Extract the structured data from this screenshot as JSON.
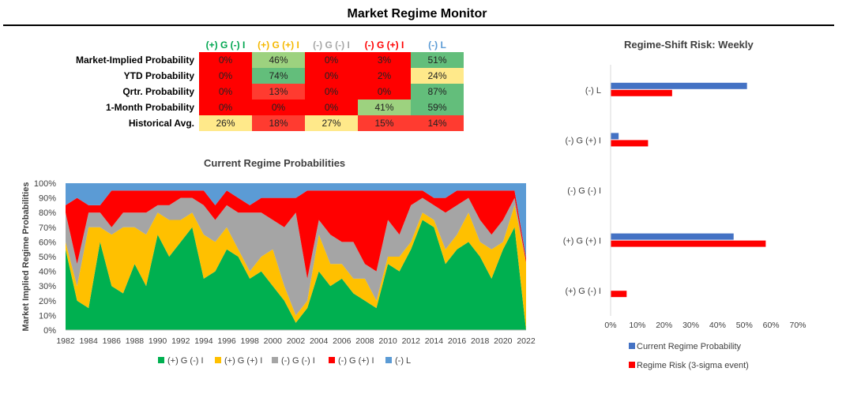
{
  "page_title": "Market Regime Monitor",
  "table": {
    "columns": [
      {
        "label": "(+) G (-) I",
        "color": "#00a650"
      },
      {
        "label": "(+) G (+) I",
        "color": "#f5b800"
      },
      {
        "label": "(-) G (-) I",
        "color": "#a6a6a6"
      },
      {
        "label": "(-) G (+) I",
        "color": "#ff0000"
      },
      {
        "label": "(-) L",
        "color": "#5b9bd5"
      }
    ],
    "rows": [
      {
        "label": "Market-Implied Probability",
        "values": [
          "0%",
          "46%",
          "0%",
          "3%",
          "51%"
        ]
      },
      {
        "label": "YTD Probability",
        "values": [
          "0%",
          "74%",
          "0%",
          "2%",
          "24%"
        ]
      },
      {
        "label": "Qrtr. Probability",
        "values": [
          "0%",
          "13%",
          "0%",
          "0%",
          "87%"
        ]
      },
      {
        "label": "1-Month Probability",
        "values": [
          "0%",
          "0%",
          "0%",
          "41%",
          "59%"
        ]
      },
      {
        "label": "Historical Avg.",
        "values": [
          "26%",
          "18%",
          "27%",
          "15%",
          "14%"
        ]
      }
    ]
  },
  "colors": {
    "g_neg_i": "#00b050",
    "g_pos_i": "#ffc000",
    "neg_g_neg_i": "#a5a5a5",
    "neg_g_pos_i": "#ff0000",
    "neg_l": "#5b9bd5",
    "current_bar": "#4472c4",
    "risk_bar": "#ff0000"
  },
  "chart_data": [
    {
      "type": "area",
      "stacked": "percent",
      "title": "Current Regime Probabilities",
      "ylabel": "Market Implied Regime Probabilities",
      "ylim": [
        0,
        100
      ],
      "y_ticks": [
        "0%",
        "10%",
        "20%",
        "30%",
        "40%",
        "50%",
        "60%",
        "70%",
        "80%",
        "90%",
        "100%"
      ],
      "x_ticks": [
        "1982",
        "1984",
        "1986",
        "1988",
        "1990",
        "1992",
        "1994",
        "1996",
        "1998",
        "2000",
        "2002",
        "2004",
        "2006",
        "2008",
        "2010",
        "2012",
        "2014",
        "2016",
        "2018",
        "2020",
        "2022"
      ],
      "x": [
        1982,
        1983,
        1984,
        1985,
        1986,
        1987,
        1988,
        1989,
        1990,
        1991,
        1992,
        1993,
        1994,
        1995,
        1996,
        1997,
        1998,
        1999,
        2000,
        2001,
        2002,
        2003,
        2004,
        2005,
        2006,
        2007,
        2008,
        2009,
        2010,
        2011,
        2012,
        2013,
        2014,
        2015,
        2016,
        2017,
        2018,
        2019,
        2020,
        2021,
        2022
      ],
      "series": [
        {
          "name": "(+) G (-) I",
          "values": [
            55,
            20,
            15,
            60,
            30,
            25,
            45,
            30,
            65,
            50,
            60,
            70,
            35,
            40,
            55,
            50,
            35,
            40,
            30,
            20,
            5,
            15,
            40,
            30,
            35,
            25,
            20,
            15,
            45,
            40,
            55,
            75,
            70,
            45,
            55,
            60,
            50,
            35,
            55,
            70,
            0
          ]
        },
        {
          "name": "(+) G (+) I",
          "values": [
            5,
            10,
            55,
            10,
            35,
            45,
            25,
            35,
            15,
            25,
            15,
            10,
            30,
            20,
            15,
            5,
            5,
            10,
            25,
            10,
            5,
            5,
            25,
            15,
            10,
            10,
            15,
            5,
            5,
            10,
            5,
            5,
            5,
            10,
            10,
            20,
            10,
            20,
            5,
            15,
            46
          ]
        },
        {
          "name": "(-) G (-) I",
          "values": [
            20,
            15,
            10,
            10,
            5,
            10,
            10,
            15,
            5,
            10,
            15,
            10,
            20,
            15,
            15,
            25,
            40,
            30,
            20,
            40,
            70,
            15,
            10,
            20,
            15,
            25,
            10,
            20,
            25,
            15,
            25,
            10,
            10,
            25,
            20,
            10,
            15,
            10,
            15,
            5,
            0
          ]
        },
        {
          "name": "(-) G (+) I",
          "values": [
            5,
            45,
            5,
            5,
            25,
            15,
            15,
            15,
            10,
            10,
            5,
            5,
            10,
            10,
            10,
            10,
            5,
            10,
            15,
            20,
            10,
            60,
            20,
            30,
            35,
            35,
            50,
            55,
            20,
            30,
            10,
            5,
            5,
            10,
            10,
            5,
            20,
            30,
            20,
            5,
            3
          ]
        },
        {
          "name": "(-) L",
          "values": [
            15,
            10,
            15,
            15,
            5,
            5,
            5,
            5,
            5,
            5,
            5,
            5,
            5,
            15,
            5,
            10,
            15,
            10,
            10,
            10,
            10,
            5,
            5,
            5,
            5,
            5,
            5,
            5,
            5,
            5,
            5,
            5,
            10,
            10,
            5,
            5,
            5,
            5,
            5,
            5,
            51
          ]
        }
      ],
      "legend_position": "bottom"
    },
    {
      "type": "bar",
      "orientation": "horizontal",
      "title": "Regime-Shift Risk: Weekly",
      "categories": [
        "(-) L",
        "(-) G (+) I",
        "(-) G (-) I",
        "(+) G (+) I",
        "(+) G (-) I"
      ],
      "x_ticks": [
        "0%",
        "10%",
        "20%",
        "30%",
        "40%",
        "50%",
        "60%",
        "70%"
      ],
      "xlim": [
        0,
        70
      ],
      "series": [
        {
          "name": "Current Regime Probability",
          "values": [
            51,
            3,
            0,
            46,
            0
          ]
        },
        {
          "name": "Regime Risk (3-sigma event)",
          "values": [
            23,
            14,
            0,
            58,
            6
          ]
        }
      ],
      "legend_position": "bottom"
    }
  ]
}
